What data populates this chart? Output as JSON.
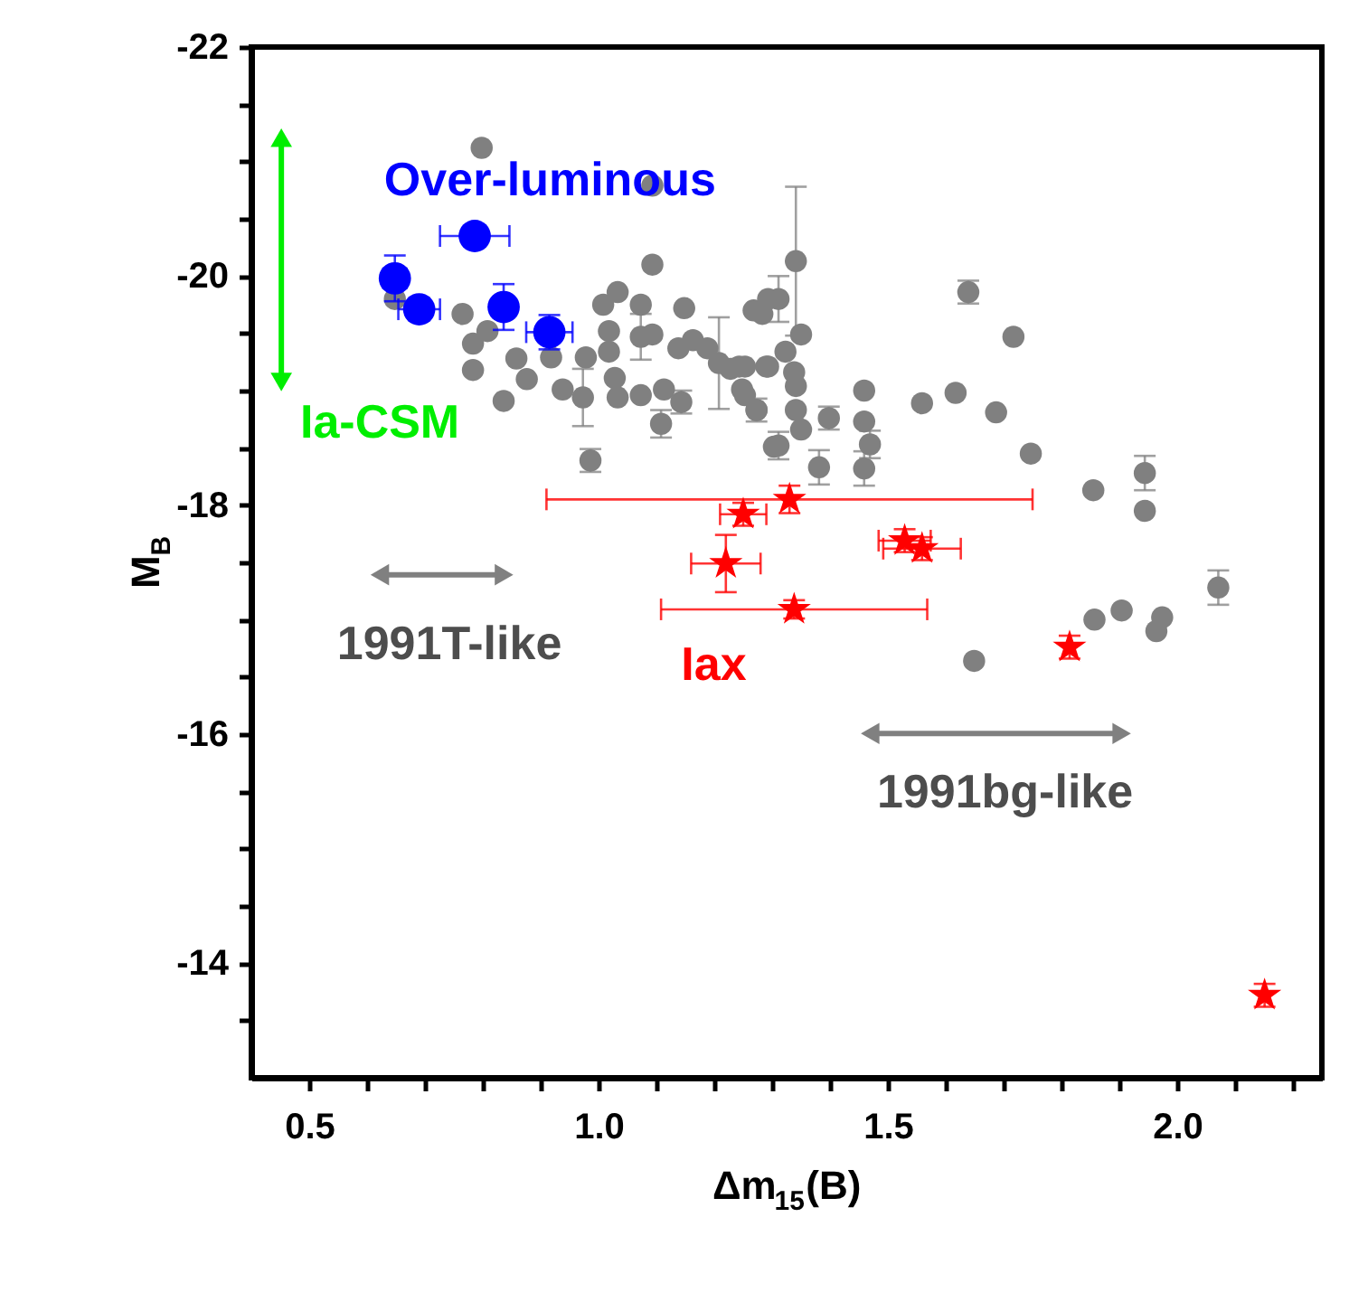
{
  "chart_data": {
    "type": "scatter",
    "xlabel": "Δm$_{15}$(B)",
    "ylabel": "M$_{B}$",
    "xlim": [
      0.4,
      2.25
    ],
    "ylim": [
      -13,
      -22
    ],
    "xticks": [
      {
        "value": 0.5,
        "label": "0.5"
      },
      {
        "value": 0.6,
        "label": null
      },
      {
        "value": 0.7,
        "label": null
      },
      {
        "value": 0.8,
        "label": null
      },
      {
        "value": 0.9,
        "label": null
      },
      {
        "value": 1.0,
        "label": "1.0"
      },
      {
        "value": 1.1,
        "label": null
      },
      {
        "value": 1.2,
        "label": null
      },
      {
        "value": 1.3,
        "label": null
      },
      {
        "value": 1.4,
        "label": null
      },
      {
        "value": 1.5,
        "label": "1.5"
      },
      {
        "value": 1.6,
        "label": null
      },
      {
        "value": 1.7,
        "label": null
      },
      {
        "value": 1.8,
        "label": null
      },
      {
        "value": 1.9,
        "label": null
      },
      {
        "value": 2.0,
        "label": "2.0"
      },
      {
        "value": 2.1,
        "label": null
      },
      {
        "value": 2.2,
        "label": null
      }
    ],
    "yticks": [
      {
        "value": -13.5,
        "label": null
      },
      -14,
      {
        "value": -14.5,
        "label": null
      },
      {
        "value": -15,
        "label": null
      },
      {
        "value": -15.5,
        "label": null
      },
      -16,
      {
        "value": -16.5,
        "label": null
      },
      {
        "value": -17,
        "label": null
      },
      {
        "value": -17.5,
        "label": null
      },
      -18,
      {
        "value": -18.5,
        "label": null
      },
      {
        "value": -19,
        "label": null
      },
      {
        "value": -19.5,
        "label": null
      },
      -20,
      {
        "value": -20.5,
        "label": null
      },
      {
        "value": -21,
        "label": null
      },
      {
        "value": -21.5,
        "label": null
      },
      -22
    ],
    "grid": false,
    "series": [
      {
        "color": "#808080",
        "marker": "circle",
        "x": [
          0.798,
          1.093,
          1.093,
          0.648,
          0.765,
          0.783,
          0.808,
          0.783,
          0.836,
          0.858,
          0.876,
          0.918,
          0.938,
          0.978,
          0.973,
          0.986,
          1.008,
          1.033,
          1.018,
          1.018,
          1.028,
          1.033,
          1.073,
          1.073,
          1.093,
          1.073,
          1.113,
          1.108,
          1.148,
          1.138,
          1.143,
          1.163,
          1.188,
          1.208,
          1.228,
          1.253,
          1.248,
          1.273,
          1.268,
          1.293,
          1.293,
          1.303,
          1.341,
          1.311,
          1.283,
          1.35,
          1.323,
          1.243,
          1.29,
          1.338,
          1.341,
          1.253,
          1.273,
          1.341,
          1.35,
          1.398,
          1.311,
          1.381,
          1.459,
          1.459,
          1.469,
          1.459,
          1.559,
          1.617,
          1.639,
          1.687,
          1.717,
          1.747,
          1.855,
          1.944,
          1.944,
          2.071,
          1.649,
          1.857,
          1.904,
          1.974,
          1.964
        ],
        "values": [
          -21.12,
          -20.79,
          -20.1,
          -19.8,
          -19.67,
          -19.41,
          -19.52,
          -19.18,
          -18.91,
          -19.28,
          -19.1,
          -19.29,
          -19.01,
          -19.29,
          -18.94,
          -18.39,
          -19.75,
          -19.86,
          -19.52,
          -19.34,
          -19.11,
          -18.94,
          -19.75,
          -19.47,
          -19.49,
          -18.96,
          -19.01,
          -18.71,
          -19.72,
          -19.37,
          -18.9,
          -19.44,
          -19.37,
          -19.24,
          -19.19,
          -19.21,
          -19.01,
          -18.83,
          -19.7,
          -19.8,
          -19.21,
          -18.51,
          -20.13,
          -19.8,
          -19.67,
          -19.49,
          -19.34,
          -19.21,
          -19.21,
          -19.16,
          -19.04,
          -18.96,
          -18.83,
          -18.83,
          -18.66,
          -18.76,
          -18.52,
          -18.33,
          -19.0,
          -18.73,
          -18.53,
          -18.32,
          -18.89,
          -18.98,
          -19.86,
          -18.81,
          -19.47,
          -18.45,
          -18.13,
          -18.28,
          -17.95,
          -17.28,
          -16.64,
          -17.0,
          -17.08,
          -17.02,
          -16.9
        ],
        "errors": [
          null,
          null,
          null,
          null,
          null,
          null,
          null,
          null,
          null,
          null,
          null,
          null,
          null,
          null,
          0.25,
          0.1,
          null,
          null,
          null,
          null,
          null,
          null,
          null,
          0.2,
          null,
          null,
          null,
          0.12,
          null,
          null,
          0.1,
          null,
          null,
          0.4,
          null,
          null,
          null,
          0.1,
          null,
          null,
          null,
          null,
          0.65,
          0.2,
          null,
          null,
          null,
          null,
          null,
          null,
          null,
          null,
          null,
          null,
          null,
          0.1,
          0.12,
          0.15,
          null,
          null,
          0.12,
          0.15,
          null,
          null,
          0.1,
          null,
          null,
          null,
          null,
          0.15,
          null,
          0.15,
          null,
          null,
          null,
          null,
          null
        ]
      },
      {
        "color": "#0000ff",
        "marker": "circle",
        "x": [
          0.648,
          0.69,
          0.786,
          0.836,
          0.915
        ],
        "values": [
          -19.98,
          -19.71,
          -20.35,
          -19.73,
          -19.51
        ],
        "errors": [
          0.2,
          0.1,
          null,
          0.2,
          0.15
        ],
        "xerrors": [
          0.02,
          0.036,
          0.06,
          null,
          0.04
        ]
      },
      {
        "color": "#ff0000",
        "marker": "star",
        "x": [
          1.25,
          1.33,
          1.22,
          1.338,
          1.529,
          1.559,
          1.814,
          2.151
        ],
        "values": [
          -17.92,
          -18.05,
          -17.49,
          -17.09,
          -17.69,
          -17.62,
          -16.76,
          -13.72
        ],
        "errors": [
          0.1,
          0.12,
          0.25,
          0.08,
          0.1,
          0.1,
          0.1,
          0.1
        ],
        "xerrors": [
          0.04,
          0.42,
          0.06,
          0.23,
          0.045,
          0.067,
          null,
          null
        ]
      }
    ],
    "annotations": [
      "Over-luminous",
      "Ia-CSM",
      "1991T-like",
      "Iax",
      "1991bg-like"
    ]
  }
}
